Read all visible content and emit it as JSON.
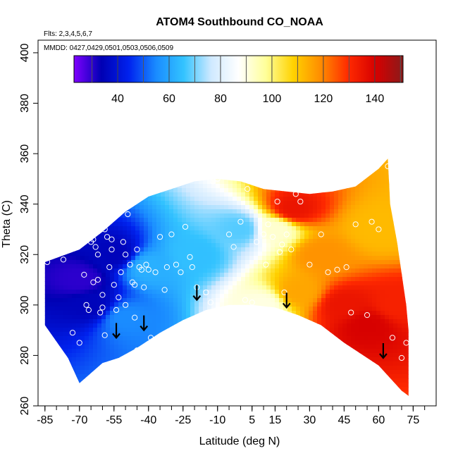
{
  "chart_data": {
    "type": "heatmap",
    "title": "ATOM4 Southbound CO_NOAA",
    "notes": [
      "Flts: 2,3,4,5,6,7",
      "MMDD: 0427,0429,0501,0503,0506,0509"
    ],
    "xlabel": "Latitude (deg N)",
    "ylabel": "Theta (C)",
    "xlim": [
      -88,
      85
    ],
    "ylim": [
      260,
      405
    ],
    "x_ticks": [
      -85,
      -70,
      -55,
      -40,
      -25,
      -10,
      5,
      15,
      30,
      45,
      60,
      75
    ],
    "y_ticks": [
      260,
      280,
      300,
      320,
      340,
      360,
      380,
      400
    ],
    "colorbar": {
      "range": [
        23,
        151
      ],
      "ticks": [
        40,
        60,
        80,
        100,
        120,
        140
      ],
      "stops": [
        "#7f00ff",
        "#0000b3",
        "#0022ee",
        "#1a8cff",
        "#33c3ff",
        "#cfe9ff",
        "#ffffff",
        "#ffff99",
        "#ffd200",
        "#ff8c00",
        "#ff2a00",
        "#d60000",
        "#8b1a1a"
      ]
    },
    "envelope": {
      "top": [
        [
          -85,
          317
        ],
        [
          -70,
          322
        ],
        [
          -60,
          329
        ],
        [
          -50,
          337
        ],
        [
          -40,
          343
        ],
        [
          -30,
          346
        ],
        [
          -20,
          349
        ],
        [
          -10,
          350
        ],
        [
          0,
          349
        ],
        [
          10,
          346
        ],
        [
          20,
          345
        ],
        [
          30,
          344
        ],
        [
          40,
          345
        ],
        [
          50,
          347
        ],
        [
          60,
          354
        ],
        [
          64,
          358
        ],
        [
          65,
          340
        ],
        [
          68,
          325
        ],
        [
          72,
          300
        ],
        [
          73,
          290
        ]
      ],
      "bottom": [
        [
          73,
          264
        ],
        [
          70,
          266
        ],
        [
          60,
          276
        ],
        [
          45,
          285
        ],
        [
          35,
          292
        ],
        [
          25,
          296
        ],
        [
          15,
          299
        ],
        [
          5,
          300
        ],
        [
          -5,
          300
        ],
        [
          -15,
          298
        ],
        [
          -25,
          294
        ],
        [
          -35,
          289
        ],
        [
          -45,
          283
        ],
        [
          -53,
          279
        ],
        [
          -60,
          277
        ],
        [
          -65,
          273
        ],
        [
          -70,
          269
        ],
        [
          -75,
          279
        ],
        [
          -85,
          292
        ]
      ]
    },
    "features": [
      {
        "x": -70,
        "y": 310,
        "value": 30
      },
      {
        "x": -65,
        "y": 300,
        "value": 35
      },
      {
        "x": -55,
        "y": 320,
        "value": 35
      },
      {
        "x": -50,
        "y": 295,
        "value": 55
      },
      {
        "x": -40,
        "y": 315,
        "value": 62
      },
      {
        "x": -20,
        "y": 320,
        "value": 65
      },
      {
        "x": 0,
        "y": 330,
        "value": 68
      },
      {
        "x": 10,
        "y": 300,
        "value": 90
      },
      {
        "x": 15,
        "y": 330,
        "value": 92
      },
      {
        "x": 23,
        "y": 338,
        "value": 135
      },
      {
        "x": 25,
        "y": 305,
        "value": 115
      },
      {
        "x": 35,
        "y": 320,
        "value": 118
      },
      {
        "x": 45,
        "y": 300,
        "value": 135
      },
      {
        "x": 55,
        "y": 292,
        "value": 140
      },
      {
        "x": 60,
        "y": 330,
        "value": 112
      },
      {
        "x": 68,
        "y": 300,
        "value": 132
      }
    ],
    "arrows": [
      [
        -54,
        287
      ],
      [
        -42,
        290
      ],
      [
        -19,
        302
      ],
      [
        20,
        299
      ],
      [
        62,
        279
      ]
    ],
    "points": [
      [
        -84,
        317
      ],
      [
        -77,
        318
      ],
      [
        -73,
        289
      ],
      [
        -70,
        285
      ],
      [
        -68,
        312
      ],
      [
        -67,
        300
      ],
      [
        -66,
        298
      ],
      [
        -65,
        325
      ],
      [
        -64,
        326
      ],
      [
        -64,
        309
      ],
      [
        -63,
        323
      ],
      [
        -62,
        320
      ],
      [
        -62,
        310
      ],
      [
        -61,
        297
      ],
      [
        -60,
        299
      ],
      [
        -60,
        304
      ],
      [
        -59,
        288
      ],
      [
        -59,
        330
      ],
      [
        -58,
        327
      ],
      [
        -57,
        315
      ],
      [
        -56,
        326
      ],
      [
        -56,
        322
      ],
      [
        -55,
        308
      ],
      [
        -54,
        298
      ],
      [
        -53,
        303
      ],
      [
        -52,
        313
      ],
      [
        -51,
        325
      ],
      [
        -50,
        320
      ],
      [
        -50,
        300
      ],
      [
        -49,
        336
      ],
      [
        -48,
        316
      ],
      [
        -47,
        309
      ],
      [
        -46,
        308
      ],
      [
        -46,
        295
      ],
      [
        -45,
        322
      ],
      [
        -45,
        282
      ],
      [
        -44,
        315
      ],
      [
        -43,
        314
      ],
      [
        -42,
        307
      ],
      [
        -41,
        316
      ],
      [
        -40,
        314
      ],
      [
        -39,
        287
      ],
      [
        -37,
        313
      ],
      [
        -35,
        327
      ],
      [
        -33,
        306
      ],
      [
        -32,
        315
      ],
      [
        -31,
        289
      ],
      [
        -30,
        328
      ],
      [
        -28,
        316
      ],
      [
        -26,
        313
      ],
      [
        -24,
        331
      ],
      [
        -22,
        319
      ],
      [
        -21,
        315
      ],
      [
        -19,
        307
      ],
      [
        -15,
        305
      ],
      [
        -13,
        301
      ],
      [
        -12,
        349
      ],
      [
        -10,
        350
      ],
      [
        -5,
        328
      ],
      [
        -3,
        323
      ],
      [
        0,
        333
      ],
      [
        2,
        302
      ],
      [
        3,
        346
      ],
      [
        5,
        301
      ],
      [
        7,
        325
      ],
      [
        10,
        328
      ],
      [
        11,
        316
      ],
      [
        12,
        332
      ],
      [
        14,
        327
      ],
      [
        16,
        341
      ],
      [
        17,
        321
      ],
      [
        18,
        324
      ],
      [
        19,
        305
      ],
      [
        20,
        328
      ],
      [
        22,
        322
      ],
      [
        24,
        344
      ],
      [
        26,
        341
      ],
      [
        30,
        316
      ],
      [
        32,
        291
      ],
      [
        35,
        328
      ],
      [
        38,
        313
      ],
      [
        42,
        314
      ],
      [
        46,
        315
      ],
      [
        48,
        297
      ],
      [
        50,
        332
      ],
      [
        55,
        296
      ],
      [
        57,
        333
      ],
      [
        60,
        330
      ],
      [
        64,
        355
      ],
      [
        66,
        287
      ],
      [
        70,
        279
      ],
      [
        72,
        285
      ]
    ]
  }
}
